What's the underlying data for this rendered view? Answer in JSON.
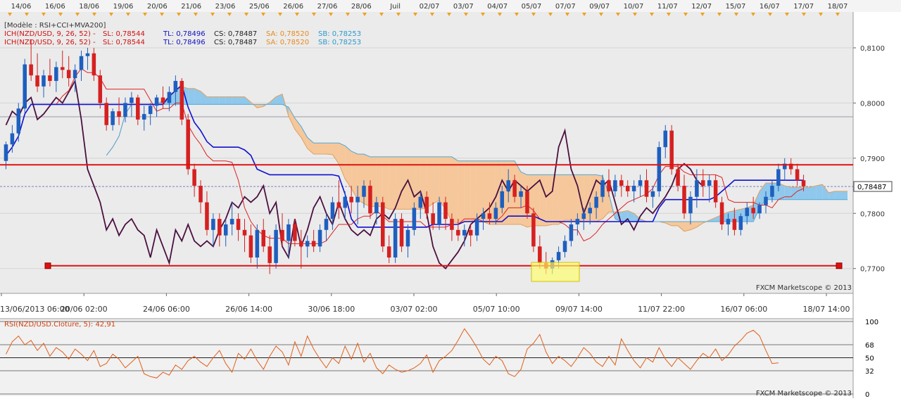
{
  "header_dates": [
    "14/06",
    "16/06",
    "18/06",
    "19/06",
    "20/06",
    "21/06",
    "23/06",
    "25/06",
    "26/06",
    "27/06",
    "28/06",
    "Juil",
    "02/07",
    "03/07",
    "04/07",
    "05/07",
    "07/07",
    "09/07",
    "10/07",
    "11/07",
    "12/07",
    "15/07",
    "16/07",
    "17/07",
    "18/07"
  ],
  "legend": {
    "model": "[Modèle : RSI+CCI+MVA200]",
    "lines": [
      {
        "prefix": "ICH(NZD/USD, 9, 26, 52)  -",
        "sl": "SL: 0,78544",
        "tl": "TL: 0,78496",
        "cs": "CS: 0,78487",
        "sa": "SA: 0,78520",
        "sb": "SB: 0,78253"
      },
      {
        "prefix": "ICH(NZD/USD, 9, 26, 52)  -",
        "sl": "SL: 0,78544",
        "tl": "TL: 0,78496",
        "cs": "CS: 0,78487",
        "sa": "SA: 0,78520",
        "sb": "SB: 0,78253"
      }
    ]
  },
  "watermark": "FXCM Marketscope © 2013",
  "price_axis": {
    "labels": [
      "0,8100",
      "0,8000",
      "0,7900",
      "0,7800",
      "0,7700"
    ],
    "current": "0,78487"
  },
  "time_axis": [
    "13/06/2013 06:00",
    "20/06 02:00",
    "24/06 06:00",
    "26/06 14:00",
    "30/06 18:00",
    "03/07 02:00",
    "05/07 10:00",
    "09/07 14:00",
    "11/07 22:00",
    "16/07 06:00",
    "18/07 14:00"
  ],
  "rsi": {
    "label": "RSI(NZD/USD.Cloture, 5): 42,91",
    "levels": [
      "100",
      "68",
      "50",
      "32",
      "0"
    ],
    "watermark": "FXCM Marketscope © 2013"
  },
  "colors": {
    "bull": "#1e5fbf",
    "bear": "#d62020",
    "tenkan": "#e02020",
    "kijun": "#1010d0",
    "chikou": "#4a1040",
    "cloud_bull": "#8fc8ec",
    "cloud_bear": "#f5c79a",
    "support": "#e01010",
    "rsi_line": "#e0601a"
  },
  "chart_data": [
    {
      "type": "candlestick",
      "title": "",
      "ylim": [
        0.7655,
        0.8165
      ],
      "grid": true,
      "series": [
        {
          "name": "Candles",
          "ohlc": [
            [
              0.7895,
              0.793,
              0.788,
              0.7925
            ],
            [
              0.7925,
              0.796,
              0.791,
              0.7945
            ],
            [
              0.7945,
              0.8,
              0.793,
              0.799
            ],
            [
              0.799,
              0.808,
              0.798,
              0.807
            ],
            [
              0.807,
              0.8115,
              0.804,
              0.805
            ],
            [
              0.805,
              0.809,
              0.802,
              0.803
            ],
            [
              0.803,
              0.806,
              0.801,
              0.805
            ],
            [
              0.805,
              0.808,
              0.803,
              0.804
            ],
            [
              0.804,
              0.8075,
              0.802,
              0.8065
            ],
            [
              0.8065,
              0.8095,
              0.8045,
              0.806
            ],
            [
              0.806,
              0.8085,
              0.803,
              0.8045
            ],
            [
              0.8045,
              0.807,
              0.802,
              0.806
            ],
            [
              0.806,
              0.8095,
              0.804,
              0.8085
            ],
            [
              0.8085,
              0.81,
              0.806,
              0.809
            ],
            [
              0.809,
              0.81,
              0.804,
              0.805
            ],
            [
              0.805,
              0.806,
              0.799,
              0.8
            ],
            [
              0.8,
              0.801,
              0.795,
              0.796
            ],
            [
              0.796,
              0.799,
              0.795,
              0.7985
            ],
            [
              0.7985,
              0.801,
              0.796,
              0.7975
            ],
            [
              0.7975,
              0.801,
              0.7965,
              0.8
            ],
            [
              0.8,
              0.802,
              0.7975,
              0.801
            ],
            [
              0.801,
              0.8015,
              0.796,
              0.797
            ],
            [
              0.797,
              0.7995,
              0.795,
              0.798
            ],
            [
              0.798,
              0.8,
              0.796,
              0.7995
            ],
            [
              0.7995,
              0.8015,
              0.7975,
              0.801
            ],
            [
              0.801,
              0.803,
              0.799,
              0.8
            ],
            [
              0.8,
              0.803,
              0.7985,
              0.802
            ],
            [
              0.802,
              0.805,
              0.7995,
              0.804
            ],
            [
              0.804,
              0.8045,
              0.796,
              0.797
            ],
            [
              0.797,
              0.798,
              0.787,
              0.788
            ],
            [
              0.788,
              0.789,
              0.783,
              0.785
            ],
            [
              0.785,
              0.786,
              0.78,
              0.782
            ],
            [
              0.782,
              0.784,
              0.776,
              0.777
            ],
            [
              0.777,
              0.78,
              0.774,
              0.779
            ],
            [
              0.779,
              0.78,
              0.774,
              0.776
            ],
            [
              0.776,
              0.779,
              0.774,
              0.778
            ],
            [
              0.778,
              0.782,
              0.776,
              0.779
            ],
            [
              0.779,
              0.78,
              0.775,
              0.777
            ],
            [
              0.777,
              0.779,
              0.773,
              0.776
            ],
            [
              0.776,
              0.778,
              0.771,
              0.772
            ],
            [
              0.772,
              0.778,
              0.77,
              0.777
            ],
            [
              0.777,
              0.779,
              0.773,
              0.774
            ],
            [
              0.774,
              0.776,
              0.769,
              0.771
            ],
            [
              0.771,
              0.778,
              0.77,
              0.777
            ],
            [
              0.777,
              0.78,
              0.774,
              0.775
            ],
            [
              0.775,
              0.779,
              0.772,
              0.778
            ],
            [
              0.778,
              0.779,
              0.774,
              0.775
            ],
            [
              0.775,
              0.777,
              0.77,
              0.774
            ],
            [
              0.774,
              0.776,
              0.772,
              0.775
            ],
            [
              0.775,
              0.777,
              0.773,
              0.774
            ],
            [
              0.774,
              0.778,
              0.773,
              0.777
            ],
            [
              0.777,
              0.78,
              0.775,
              0.779
            ],
            [
              0.779,
              0.783,
              0.777,
              0.782
            ],
            [
              0.782,
              0.786,
              0.779,
              0.781
            ],
            [
              0.781,
              0.784,
              0.779,
              0.783
            ],
            [
              0.783,
              0.785,
              0.78,
              0.782
            ],
            [
              0.782,
              0.785,
              0.778,
              0.783
            ],
            [
              0.783,
              0.786,
              0.781,
              0.785
            ],
            [
              0.785,
              0.786,
              0.779,
              0.78
            ],
            [
              0.78,
              0.783,
              0.778,
              0.782
            ],
            [
              0.782,
              0.783,
              0.773,
              0.774
            ],
            [
              0.774,
              0.776,
              0.771,
              0.772
            ],
            [
              0.772,
              0.78,
              0.771,
              0.779
            ],
            [
              0.779,
              0.78,
              0.773,
              0.774
            ],
            [
              0.774,
              0.778,
              0.772,
              0.777
            ],
            [
              0.777,
              0.782,
              0.776,
              0.781
            ],
            [
              0.781,
              0.784,
              0.779,
              0.783
            ],
            [
              0.783,
              0.784,
              0.779,
              0.78
            ],
            [
              0.78,
              0.782,
              0.777,
              0.778
            ],
            [
              0.778,
              0.783,
              0.777,
              0.782
            ],
            [
              0.782,
              0.783,
              0.777,
              0.779
            ],
            [
              0.779,
              0.78,
              0.775,
              0.777
            ],
            [
              0.777,
              0.779,
              0.775,
              0.776
            ],
            [
              0.776,
              0.778,
              0.774,
              0.777
            ],
            [
              0.777,
              0.778,
              0.774,
              0.776
            ],
            [
              0.776,
              0.78,
              0.775,
              0.779
            ],
            [
              0.779,
              0.781,
              0.777,
              0.78
            ],
            [
              0.78,
              0.782,
              0.778,
              0.779
            ],
            [
              0.779,
              0.782,
              0.778,
              0.781
            ],
            [
              0.781,
              0.785,
              0.78,
              0.784
            ],
            [
              0.784,
              0.788,
              0.782,
              0.786
            ],
            [
              0.786,
              0.787,
              0.782,
              0.783
            ],
            [
              0.783,
              0.785,
              0.781,
              0.784
            ],
            [
              0.784,
              0.785,
              0.779,
              0.78
            ],
            [
              0.78,
              0.781,
              0.773,
              0.774
            ],
            [
              0.774,
              0.776,
              0.77,
              0.771
            ],
            [
              0.771,
              0.773,
              0.769,
              0.77
            ],
            [
              0.77,
              0.772,
              0.769,
              0.7715
            ],
            [
              0.7715,
              0.774,
              0.77,
              0.773
            ],
            [
              0.773,
              0.776,
              0.772,
              0.775
            ],
            [
              0.775,
              0.779,
              0.774,
              0.778
            ],
            [
              0.778,
              0.78,
              0.776,
              0.779
            ],
            [
              0.779,
              0.781,
              0.777,
              0.78
            ],
            [
              0.78,
              0.782,
              0.778,
              0.781
            ],
            [
              0.781,
              0.784,
              0.779,
              0.783
            ],
            [
              0.783,
              0.787,
              0.782,
              0.786
            ],
            [
              0.786,
              0.788,
              0.783,
              0.784
            ],
            [
              0.784,
              0.787,
              0.783,
              0.786
            ],
            [
              0.786,
              0.787,
              0.783,
              0.785
            ],
            [
              0.785,
              0.786,
              0.783,
              0.784
            ],
            [
              0.784,
              0.786,
              0.782,
              0.785
            ],
            [
              0.785,
              0.787,
              0.783,
              0.786
            ],
            [
              0.786,
              0.788,
              0.782,
              0.783
            ],
            [
              0.783,
              0.785,
              0.781,
              0.784
            ],
            [
              0.784,
              0.793,
              0.783,
              0.792
            ],
            [
              0.792,
              0.796,
              0.79,
              0.795
            ],
            [
              0.795,
              0.796,
              0.787,
              0.788
            ],
            [
              0.788,
              0.789,
              0.784,
              0.785
            ],
            [
              0.785,
              0.787,
              0.779,
              0.78
            ],
            [
              0.78,
              0.784,
              0.778,
              0.783
            ],
            [
              0.783,
              0.788,
              0.781,
              0.786
            ],
            [
              0.786,
              0.788,
              0.783,
              0.785
            ],
            [
              0.785,
              0.787,
              0.782,
              0.786
            ],
            [
              0.786,
              0.787,
              0.781,
              0.782
            ],
            [
              0.782,
              0.783,
              0.777,
              0.778
            ],
            [
              0.778,
              0.78,
              0.776,
              0.779
            ],
            [
              0.779,
              0.781,
              0.776,
              0.777
            ],
            [
              0.777,
              0.78,
              0.776,
              0.7795
            ],
            [
              0.7795,
              0.782,
              0.778,
              0.781
            ],
            [
              0.781,
              0.783,
              0.779,
              0.78
            ],
            [
              0.78,
              0.782,
              0.779,
              0.7815
            ],
            [
              0.7815,
              0.784,
              0.78,
              0.783
            ],
            [
              0.783,
              0.786,
              0.782,
              0.785
            ],
            [
              0.785,
              0.789,
              0.784,
              0.788
            ],
            [
              0.788,
              0.79,
              0.786,
              0.789
            ],
            [
              0.789,
              0.79,
              0.787,
              0.788
            ],
            [
              0.788,
              0.789,
              0.785,
              0.786
            ],
            [
              0.786,
              0.787,
              0.784,
              0.7849
            ]
          ]
        },
        {
          "name": "Support",
          "values": [
            0.7705,
            0.7705
          ]
        },
        {
          "name": "Resistance",
          "values": [
            0.7888,
            0.7888
          ]
        }
      ]
    },
    {
      "type": "line",
      "title": "RSI(NZD/USD.Cloture, 5): 42,91",
      "ylim": [
        0,
        100
      ],
      "series": [
        {
          "name": "RSI",
          "values": [
            55,
            72,
            80,
            68,
            74,
            60,
            70,
            52,
            64,
            58,
            48,
            62,
            55,
            46,
            60,
            38,
            42,
            55,
            48,
            36,
            44,
            52,
            28,
            24,
            22,
            30,
            26,
            40,
            34,
            46,
            52,
            44,
            38,
            50,
            60,
            42,
            30,
            56,
            48,
            62,
            46,
            34,
            52,
            66,
            58,
            40,
            72,
            52,
            80,
            62,
            48,
            36,
            50,
            42,
            66,
            48,
            70,
            44,
            56,
            36,
            28,
            40,
            34,
            30,
            32,
            36,
            42,
            54,
            30,
            46,
            52,
            60,
            74,
            90,
            78,
            64,
            48,
            40,
            52,
            46,
            28,
            24,
            34,
            62,
            70,
            82,
            58,
            42,
            52,
            46,
            38,
            50,
            64,
            56,
            44,
            38,
            52,
            40,
            76,
            60,
            46,
            36,
            50,
            44,
            64,
            48,
            38,
            50,
            42,
            34,
            46,
            56,
            50,
            62,
            46,
            54,
            66,
            74,
            84,
            88,
            80,
            60,
            42,
            43
          ]
        }
      ]
    }
  ]
}
